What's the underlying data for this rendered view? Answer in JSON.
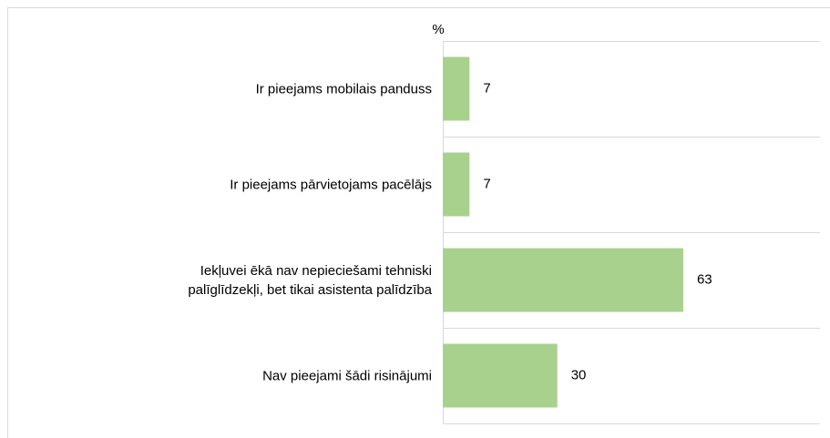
{
  "chart_data": {
    "type": "bar",
    "orientation": "horizontal",
    "x_label": "%",
    "categories": [
      "Ir pieejams mobilais panduss",
      "Ir pieejams pārvietojams pacēlājs",
      "Iekļuvei ēkā nav nepieciešami tehniski\npalīglīdzekļi, bet tikai asistenta palīdzība",
      "Nav pieejami šādi risinājumi"
    ],
    "values": [
      7,
      7,
      63,
      30
    ],
    "color": "#a9d18e",
    "xlim": [
      0,
      100
    ]
  }
}
